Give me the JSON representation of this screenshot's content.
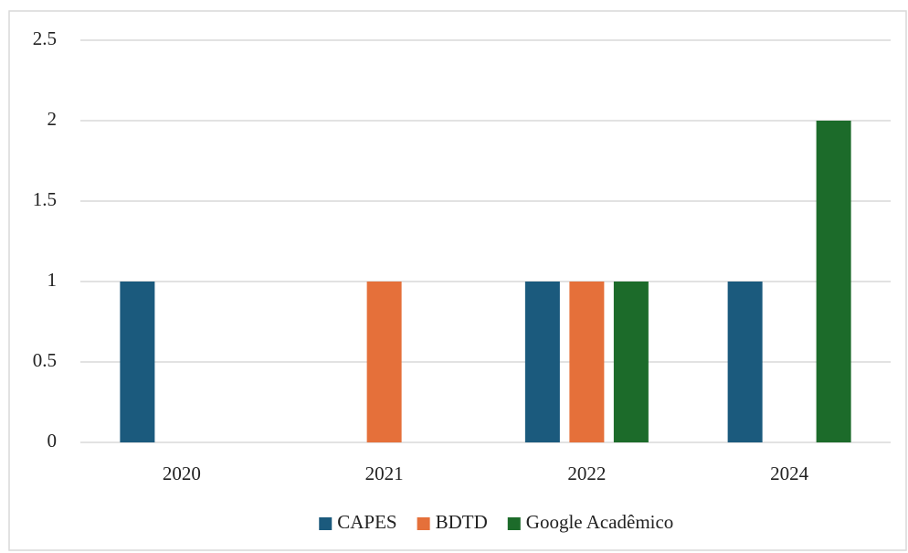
{
  "chart_data": {
    "type": "bar",
    "categories": [
      "2020",
      "2021",
      "2022",
      "2024"
    ],
    "series": [
      {
        "name": "CAPES",
        "color": "#1b5a7d",
        "values": [
          1,
          0,
          1,
          1
        ]
      },
      {
        "name": "BDTD",
        "color": "#e5703a",
        "values": [
          0,
          1,
          1,
          0
        ]
      },
      {
        "name": "Google Acadêmico",
        "color": "#1c6b2a",
        "values": [
          0,
          0,
          1,
          2
        ]
      }
    ],
    "ylim": [
      0,
      2.5
    ],
    "yticks": [
      0,
      0.5,
      1,
      1.5,
      2,
      2.5
    ],
    "grid": true,
    "legend": "bottom"
  }
}
